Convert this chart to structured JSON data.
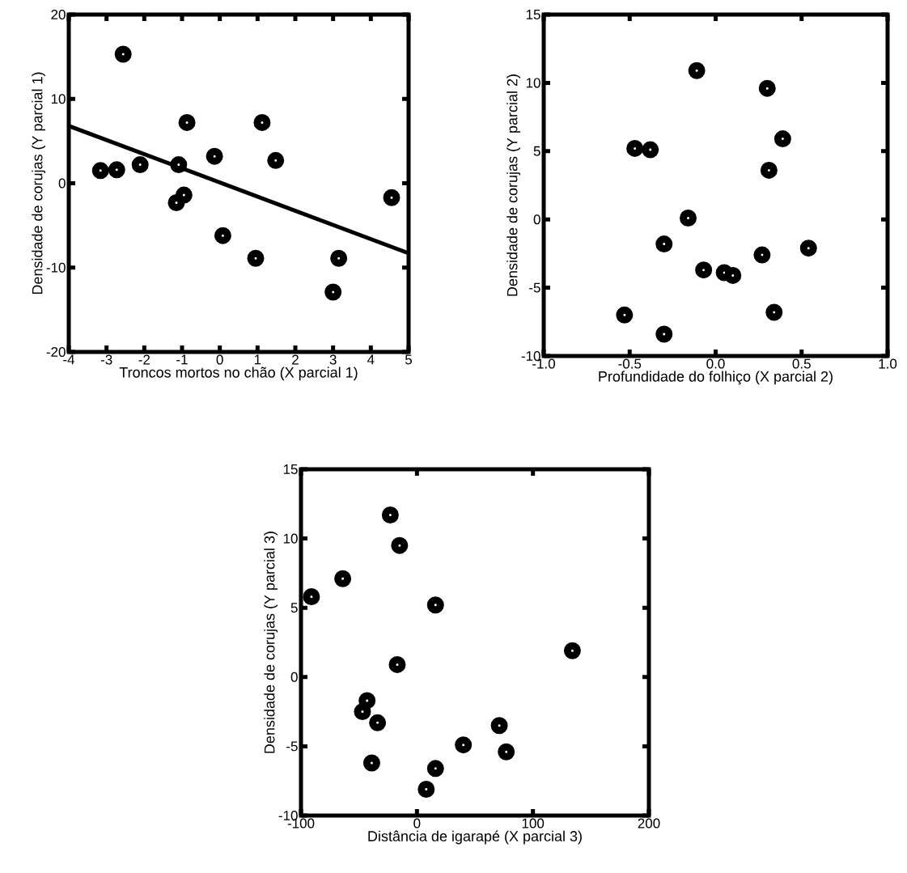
{
  "chart_data": [
    {
      "type": "scatter",
      "xlabel": "Troncos mortos no chão (X parcial 1)",
      "ylabel": "Densidade de corujas (Y parcial 1)",
      "xlim": [
        -4,
        5
      ],
      "ylim": [
        -20,
        20
      ],
      "xticks": [
        -4,
        -3,
        -2,
        -1,
        0,
        1,
        2,
        3,
        4,
        5
      ],
      "yticks": [
        -20,
        -10,
        0,
        10,
        20
      ],
      "grid": false,
      "series": [
        {
          "marker": "circle",
          "color": "#000000",
          "x": [
            -2.56,
            -3.16,
            -2.73,
            -2.11,
            -1.09,
            -0.87,
            -0.14,
            1.12,
            1.48,
            -0.95,
            -1.15,
            0.08,
            0.95,
            3.15,
            3.0,
            4.55
          ],
          "values": [
            15.3,
            1.5,
            1.6,
            2.2,
            2.2,
            7.2,
            3.2,
            7.2,
            2.7,
            -1.4,
            -2.3,
            -6.2,
            -8.9,
            -8.9,
            -12.9,
            -1.7
          ]
        },
        {
          "type": "line",
          "marker": "none",
          "color": "#000000",
          "line_style": "solid",
          "x": [
            -4,
            5
          ],
          "values": [
            6.8,
            -8.3
          ]
        }
      ]
    },
    {
      "type": "scatter",
      "xlabel": "Profundidade do folhiço (X parcial 2)",
      "ylabel": "Densidade de corujas (Y parcial 2)",
      "xlim": [
        -1,
        1
      ],
      "ylim": [
        -10,
        15
      ],
      "xticks": [
        {
          "value": -1,
          "label": "-1.0"
        },
        {
          "value": -0.5,
          "label": "-0.5"
        },
        {
          "value": 0,
          "label": "0.0"
        },
        {
          "value": 0.5,
          "label": "0.5"
        },
        {
          "value": 1,
          "label": "1.0"
        }
      ],
      "yticks": [
        -10,
        -5,
        0,
        5,
        10,
        15
      ],
      "grid": false,
      "marker": "circle",
      "series": [
        {
          "color": "#000000",
          "x": [
            -0.11,
            0.3,
            -0.47,
            -0.38,
            0.39,
            0.31,
            -0.16,
            -0.3,
            0.54,
            0.27,
            -0.07,
            0.05,
            0.1,
            -0.53,
            0.34,
            -0.3
          ],
          "values": [
            10.9,
            9.6,
            5.2,
            5.1,
            5.9,
            3.6,
            0.1,
            -1.8,
            -2.1,
            -2.6,
            -3.7,
            -3.9,
            -4.1,
            -7.0,
            -6.8,
            -8.4
          ]
        }
      ]
    },
    {
      "type": "scatter",
      "xlabel": "Distância de igarapé  (X parcial 3)",
      "ylabel": "Densidade de corujas (Y parcial 3)",
      "xlim": [
        -100,
        200
      ],
      "ylim": [
        -10,
        15
      ],
      "xticks": [
        -100,
        0,
        100,
        200
      ],
      "yticks": [
        -10,
        -5,
        0,
        5,
        10,
        15
      ],
      "grid": false,
      "marker": "circle",
      "series": [
        {
          "color": "#000000",
          "x": [
            -23,
            -15,
            -64,
            -91,
            16,
            -17,
            134,
            -43,
            -47,
            -34,
            71,
            40,
            77,
            -39,
            16,
            8
          ],
          "values": [
            11.7,
            9.5,
            7.1,
            5.8,
            5.2,
            0.9,
            1.9,
            -1.7,
            -2.5,
            -3.3,
            -3.5,
            -4.9,
            -5.4,
            -6.2,
            -6.6,
            -8.1
          ]
        }
      ]
    }
  ]
}
